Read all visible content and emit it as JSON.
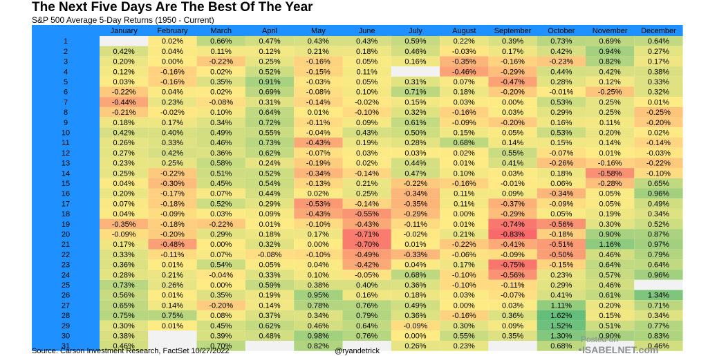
{
  "header": {
    "title": "The Next Five Days Are The Best Of The Year",
    "subtitle": "S&P 500 Average 5-Day Returns (1950 - Current)"
  },
  "footer": {
    "source": "Source: Carson Investment Research, FactSet 10/27/2022",
    "handle": "@ryandetrick"
  },
  "watermark": {
    "line1": "Posted on",
    "line2": "ISABELNET.com"
  },
  "colors": {
    "header_bar": "#1e90ff",
    "day_column": "#1e90ff",
    "strong_negative": "#f8696b",
    "neutral": "#ffeb84",
    "strong_positive": "#63be7b",
    "empty_cell": "#f2f2f2"
  },
  "chart_data": {
    "type": "heatmap",
    "title": "The Next Five Days Are The Best Of The Year",
    "subtitle": "S&P 500 Average 5-Day Returns (1950 - Current)",
    "columns": [
      "January",
      "February",
      "March",
      "April",
      "May",
      "June",
      "July",
      "August",
      "September",
      "October",
      "November",
      "December"
    ],
    "rows": [
      "1",
      "2",
      "3",
      "4",
      "5",
      "6",
      "7",
      "8",
      "9",
      "10",
      "11",
      "12",
      "13",
      "14",
      "15",
      "16",
      "17",
      "18",
      "19",
      "20",
      "21",
      "22",
      "23",
      "24",
      "25",
      "26",
      "27",
      "28",
      "29",
      "30",
      "31"
    ],
    "values": [
      [
        null,
        "0.02%",
        "0.66%",
        "0.47%",
        "0.43%",
        "0.43%",
        "0.59%",
        "0.22%",
        "0.39%",
        "0.73%",
        "0.69%",
        "0.64%"
      ],
      [
        "0.42%",
        "0.04%",
        "0.11%",
        "0.12%",
        "0.21%",
        "0.18%",
        "0.46%",
        "-0.03%",
        "0.17%",
        "0.42%",
        "0.94%",
        "0.27%"
      ],
      [
        "0.20%",
        "0.00%",
        "-0.22%",
        "0.25%",
        "-0.16%",
        "0.05%",
        "0.16%",
        "-0.35%",
        "-0.16%",
        "-0.23%",
        "0.82%",
        "0.17%"
      ],
      [
        "0.12%",
        "-0.16%",
        "0.02%",
        "0.52%",
        "-0.15%",
        "0.11%",
        null,
        "-0.46%",
        "-0.29%",
        "0.44%",
        "0.42%",
        "0.38%"
      ],
      [
        "0.03%",
        "-0.16%",
        "0.35%",
        "0.91%",
        "-0.03%",
        "0.05%",
        "0.31%",
        "0.07%",
        "-0.47%",
        "0.28%",
        "0.12%",
        "0.33%"
      ],
      [
        "-0.22%",
        "0.04%",
        "0.02%",
        "0.69%",
        "-0.08%",
        "0.10%",
        "0.71%",
        "0.18%",
        "-0.20%",
        "-0.01%",
        "-0.25%",
        "0.32%"
      ],
      [
        "-0.44%",
        "0.23%",
        "-0.08%",
        "0.31%",
        "-0.14%",
        "-0.02%",
        "0.15%",
        "0.03%",
        "0.00%",
        "0.53%",
        "0.25%",
        "0.01%"
      ],
      [
        "-0.21%",
        "-0.02%",
        "0.10%",
        "0.64%",
        "0.01%",
        "-0.10%",
        "0.32%",
        "-0.16%",
        "0.03%",
        "0.29%",
        "0.25%",
        "-0.25%"
      ],
      [
        "0.18%",
        "0.17%",
        "0.34%",
        "0.72%",
        "-0.11%",
        "0.09%",
        "0.61%",
        "-0.09%",
        "-0.20%",
        "0.16%",
        "0.11%",
        "-0.20%"
      ],
      [
        "0.42%",
        "0.40%",
        "0.49%",
        "0.55%",
        "-0.04%",
        "0.43%",
        "0.50%",
        "0.15%",
        "0.05%",
        "0.53%",
        "0.20%",
        "0.02%"
      ],
      [
        "0.26%",
        "0.33%",
        "0.46%",
        "0.73%",
        "-0.43%",
        "0.19%",
        "0.28%",
        "0.68%",
        "0.14%",
        "0.15%",
        "0.14%",
        "-0.14%"
      ],
      [
        "0.27%",
        "0.42%",
        "0.36%",
        "0.62%",
        "-0.07%",
        "0.03%",
        "0.03%",
        "0.02%",
        "0.55%",
        "-0.07%",
        "0.01%",
        "-0.03%"
      ],
      [
        "0.23%",
        "0.25%",
        "0.58%",
        "0.24%",
        "-0.19%",
        "0.02%",
        "0.44%",
        "0.01%",
        "0.41%",
        "-0.26%",
        "-0.16%",
        "-0.22%"
      ],
      [
        "0.25%",
        "-0.22%",
        "0.51%",
        "0.52%",
        "-0.34%",
        "-0.14%",
        "0.47%",
        "0.10%",
        "0.03%",
        "0.18%",
        "-0.58%",
        "-0.10%"
      ],
      [
        "0.04%",
        "-0.30%",
        "0.45%",
        "0.54%",
        "-0.13%",
        "0.21%",
        "-0.22%",
        "-0.16%",
        "-0.01%",
        "0.06%",
        "-0.28%",
        "0.65%"
      ],
      [
        "0.20%",
        "-0.17%",
        "0.07%",
        "0.44%",
        "0.02%",
        "0.25%",
        "-0.34%",
        "0.11%",
        "0.09%",
        "-0.34%",
        "0.05%",
        "0.96%"
      ],
      [
        "0.07%",
        "-0.18%",
        "0.52%",
        "0.29%",
        "-0.53%",
        "-0.14%",
        "-0.35%",
        "0.11%",
        "-0.37%",
        "-0.09%",
        "0.05%",
        "0.49%"
      ],
      [
        "0.04%",
        "-0.09%",
        "0.03%",
        "0.09%",
        "-0.43%",
        "-0.55%",
        "-0.29%",
        "0.00%",
        "-0.29%",
        "0.05%",
        "0.19%",
        "0.34%"
      ],
      [
        "-0.35%",
        "-0.18%",
        "-0.22%",
        "0.01%",
        "-0.10%",
        "-0.43%",
        "-0.11%",
        "0.01%",
        "-0.74%",
        "-0.56%",
        "0.30%",
        "0.52%"
      ],
      [
        "-0.09%",
        "-0.20%",
        "0.29%",
        "0.18%",
        "0.17%",
        "-0.71%",
        "-0.02%",
        "0.21%",
        "-0.83%",
        "-0.18%",
        "0.90%",
        "0.87%"
      ],
      [
        "0.17%",
        "-0.48%",
        "0.00%",
        "0.32%",
        "0.00%",
        "-0.70%",
        "0.01%",
        "-0.22%",
        "-0.41%",
        "-0.51%",
        "1.16%",
        "0.97%"
      ],
      [
        "0.33%",
        "-0.11%",
        "0.07%",
        "-0.08%",
        "-0.10%",
        "-0.49%",
        "-0.33%",
        "-0.06%",
        "-0.09%",
        "-0.50%",
        "0.46%",
        "0.79%"
      ],
      [
        "0.36%",
        "0.01%",
        "0.54%",
        "0.05%",
        "0.04%",
        "-0.42%",
        "0.04%",
        "0.17%",
        "-0.75%",
        "-0.15%",
        "0.64%",
        "0.64%"
      ],
      [
        "0.28%",
        "0.21%",
        "-0.04%",
        "0.33%",
        "0.10%",
        "-0.05%",
        "0.68%",
        "-0.10%",
        "-0.56%",
        "0.23%",
        "0.57%",
        "0.96%"
      ],
      [
        "0.73%",
        "0.26%",
        "0.00%",
        "0.59%",
        "0.38%",
        "0.40%",
        "0.36%",
        "-0.10%",
        "-0.11%",
        "0.29%",
        "0.46%",
        null
      ],
      [
        "0.56%",
        "0.01%",
        "0.35%",
        "0.19%",
        "0.95%",
        "0.16%",
        "0.18%",
        "0.03%",
        "-0.07%",
        "0.41%",
        "0.61%",
        "1.34%"
      ],
      [
        "0.65%",
        "0.14%",
        "-0.20%",
        "0.14%",
        "0.78%",
        "0.76%",
        "0.49%",
        "0.00%",
        "0.03%",
        "1.11%",
        "0.20%",
        "0.71%"
      ],
      [
        "0.75%",
        "0.75%",
        "0.08%",
        "0.37%",
        "0.34%",
        "0.79%",
        "0.36%",
        "-0.16%",
        "0.36%",
        "1.62%",
        "0.15%",
        "0.34%"
      ],
      [
        "0.30%",
        "0.01%",
        "0.45%",
        "0.62%",
        "0.46%",
        "0.64%",
        "-0.09%",
        "0.30%",
        "0.09%",
        "1.52%",
        "0.51%",
        "0.77%"
      ],
      [
        "0.38%",
        null,
        "0.39%",
        "0.48%",
        "0.98%",
        "0.76%",
        "0.00%",
        "0.55%",
        "0.35%",
        "1.30%",
        "0.90%",
        "0.83%"
      ],
      [
        "0.46%",
        null,
        "0.70%",
        null,
        "0.82%",
        null,
        "0.26%",
        "0.23%",
        null,
        "0.68%",
        null,
        "0.46%"
      ]
    ],
    "color_scale": {
      "min": -0.83,
      "mid": 0,
      "max": 1.62
    }
  }
}
